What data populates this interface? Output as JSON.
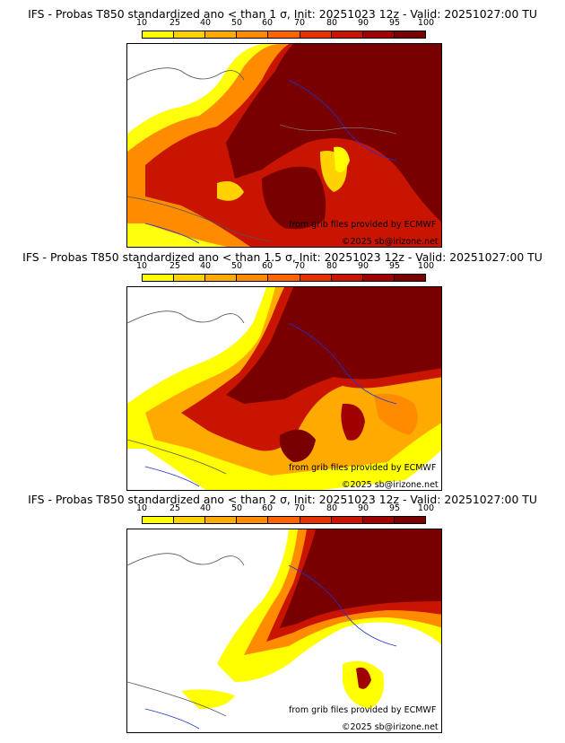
{
  "panels": [
    {
      "title": "IFS - Probas T850  standardized ano < than 1 σ, Init: 20251023 12z - Valid: 20251027:00 TU",
      "credit": "from grib files provided by ECMWF",
      "copyright": "©2025 sb@irizone.net"
    },
    {
      "title": "IFS - Probas T850  standardized ano < than 1.5 σ, Init: 20251023 12z - Valid: 20251027:00 TU",
      "credit": "from grib files provided by ECMWF",
      "copyright": "©2025 sb@irizone.net"
    },
    {
      "title": "IFS - Probas T850  standardized ano < than 2 σ, Init: 20251023 12z - Valid: 20251027:00 TU",
      "credit": "from grib files provided by ECMWF",
      "copyright": "©2025 sb@irizone.net"
    }
  ],
  "colorbar": {
    "ticks": [
      "10",
      "25",
      "40",
      "50",
      "60",
      "70",
      "80",
      "90",
      "95",
      "100"
    ],
    "colors": [
      "#ffff00",
      "#ffd200",
      "#ffaa00",
      "#ff8c00",
      "#ff6400",
      "#e63200",
      "#c81400",
      "#a00000",
      "#780000"
    ]
  },
  "colors": {
    "land_line": "#555555",
    "river": "#2233cc",
    "border": "#888888"
  }
}
